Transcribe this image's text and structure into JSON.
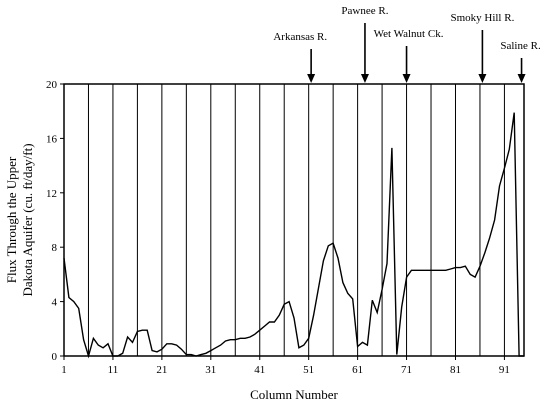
{
  "chart_data": {
    "type": "line",
    "title": "",
    "xlabel": "Column Number",
    "ylabel_line1": "Flux Through the Upper",
    "ylabel_line2": "Dakota Aquifer (cu. ft/day/ft)",
    "xlim": [
      1,
      95
    ],
    "ylim": [
      0,
      20
    ],
    "x_ticks": [
      1,
      11,
      21,
      31,
      41,
      51,
      61,
      71,
      81,
      91
    ],
    "y_ticks": [
      0,
      4,
      8,
      12,
      16,
      20
    ],
    "grid": "vertical lines at every 5 columns",
    "vertical_grid_x": [
      1,
      6,
      11,
      16,
      21,
      26,
      31,
      36,
      41,
      46,
      51,
      56,
      61,
      66,
      71,
      76,
      81,
      86,
      91,
      95
    ],
    "annotations": [
      {
        "label": "Arkansas R.",
        "x": 51.5
      },
      {
        "label": "Pawnee R.",
        "x": 62.5
      },
      {
        "label": "Wet Walnut Ck.",
        "x": 71
      },
      {
        "label": "Smoky Hill R.",
        "x": 86.5
      },
      {
        "label": "Saline R.",
        "x": 94.5
      }
    ],
    "series": [
      {
        "x": [
          1,
          2,
          3,
          4,
          5,
          6,
          7,
          8,
          9,
          10,
          11,
          12,
          13,
          14,
          15,
          16,
          17,
          18,
          19,
          20,
          21,
          22,
          23,
          24,
          25,
          26,
          27,
          28,
          29,
          30,
          31,
          32,
          33,
          34,
          35,
          36,
          37,
          38,
          39,
          40,
          41,
          42,
          43,
          44,
          45,
          46,
          47,
          48,
          49,
          50,
          51,
          52,
          53,
          54,
          55,
          56,
          57,
          58,
          59,
          60,
          61,
          62,
          63,
          64,
          65,
          66,
          67,
          68,
          69,
          70,
          71,
          72,
          73,
          74,
          75,
          76,
          77,
          78,
          79,
          80,
          81,
          82,
          83,
          84,
          85,
          86,
          87,
          88,
          89,
          90,
          91,
          92,
          93,
          94,
          95
        ],
        "values": [
          7.2,
          4.3,
          4.0,
          3.5,
          1.2,
          0.0,
          1.3,
          0.8,
          0.6,
          0.9,
          0.0,
          0.0,
          0.2,
          1.4,
          1.0,
          1.8,
          1.9,
          1.9,
          0.4,
          0.3,
          0.5,
          0.9,
          0.9,
          0.8,
          0.5,
          0.1,
          0.1,
          0.0,
          0.1,
          0.2,
          0.4,
          0.6,
          0.8,
          1.1,
          1.2,
          1.2,
          1.3,
          1.3,
          1.4,
          1.6,
          1.9,
          2.2,
          2.5,
          2.5,
          3.0,
          3.8,
          4.0,
          2.8,
          0.6,
          0.8,
          1.3,
          3.0,
          5.0,
          7.0,
          8.1,
          8.3,
          7.2,
          5.4,
          4.6,
          4.2,
          0.7,
          1.0,
          0.8,
          4.1,
          3.2,
          4.9,
          6.8,
          15.3,
          0.1,
          3.6,
          5.8,
          6.3,
          6.3,
          6.3,
          6.3,
          6.3,
          6.3,
          6.3,
          6.3,
          6.4,
          6.5,
          6.5,
          6.6,
          6.0,
          5.8,
          6.6,
          7.6,
          8.7,
          10.0,
          12.5,
          13.8,
          15.2,
          17.9,
          0.0,
          0.0
        ]
      }
    ]
  }
}
